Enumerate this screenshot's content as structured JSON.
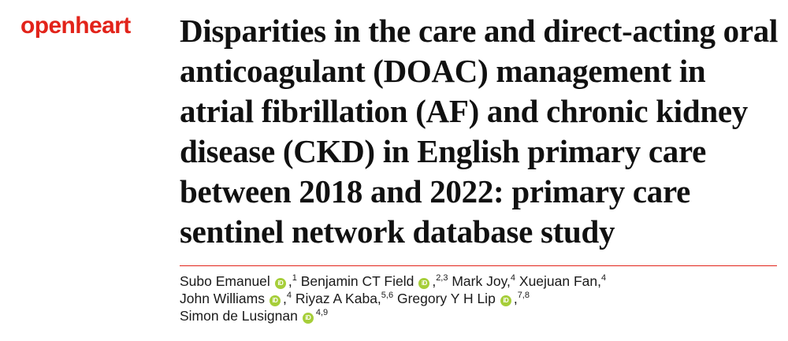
{
  "journal": {
    "name": "openheart",
    "color": "#e2231a"
  },
  "article": {
    "title": "Disparities in the care and direct-acting oral anticoagulant (DOAC) management in atrial fibrillation (AF) and chronic kidney disease (CKD) in English primary care between 2018 and 2022: primary care sentinel network database study"
  },
  "rule_color": "#e2231a",
  "orcid": {
    "icon": "orcid-icon",
    "color": "#a6ce39",
    "glyph": "iD"
  },
  "authors": [
    {
      "name": "Subo Emanuel",
      "orcid": true,
      "sep": ",",
      "aff": "1"
    },
    {
      "name": "Benjamin CT Field",
      "orcid": true,
      "sep": ",",
      "aff": "2,3"
    },
    {
      "name": "Mark Joy,",
      "orcid": false,
      "sep": "",
      "aff": "4"
    },
    {
      "name": "Xuejuan Fan,",
      "orcid": false,
      "sep": "",
      "aff": "4"
    },
    {
      "name": "John Williams",
      "orcid": true,
      "sep": ",",
      "aff": "4"
    },
    {
      "name": "Riyaz A Kaba,",
      "orcid": false,
      "sep": "",
      "aff": "5,6"
    },
    {
      "name": "Gregory Y H Lip",
      "orcid": true,
      "sep": ",",
      "aff": "7,8"
    },
    {
      "name": "Simon de Lusignan",
      "orcid": true,
      "sep": "",
      "aff": "4,9"
    }
  ],
  "author_lines": [
    [
      0,
      1,
      2,
      3
    ],
    [
      4,
      5,
      6
    ],
    [
      7
    ]
  ]
}
